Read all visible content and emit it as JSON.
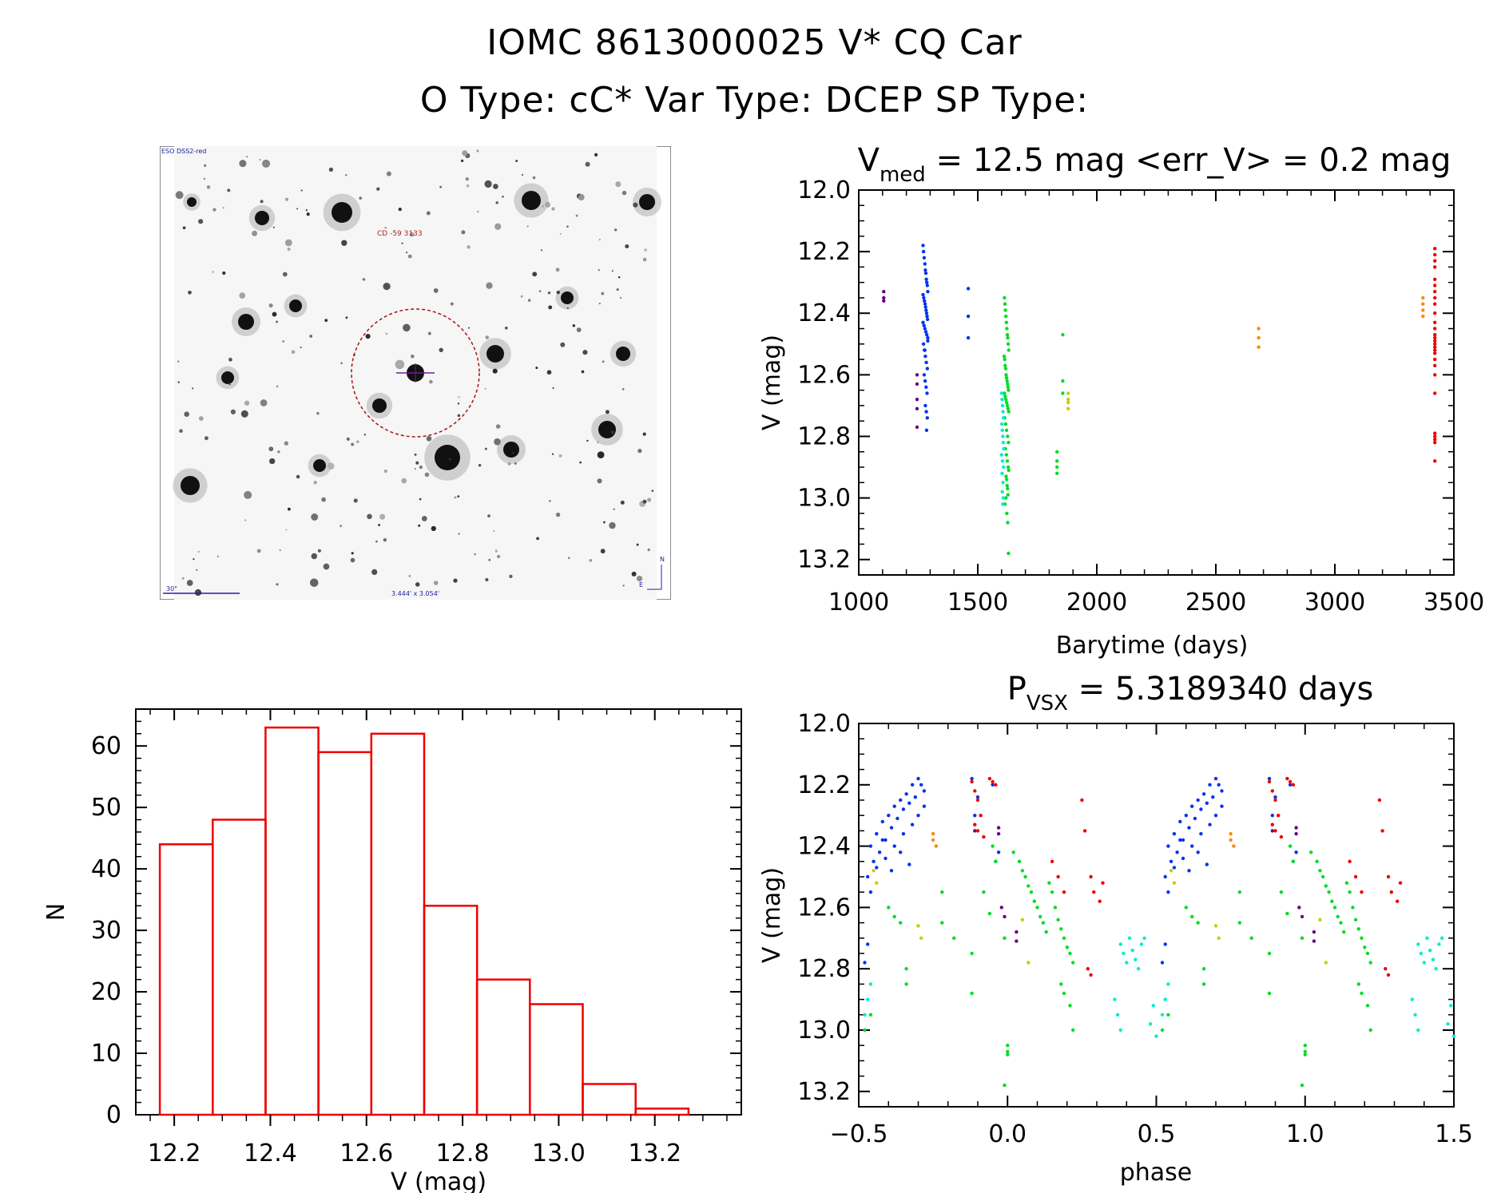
{
  "header": {
    "line1": "IOMC 8613000025    V* CQ Car",
    "line2": "O Type: cC*  Var Type: DCEP  SP Type:"
  },
  "finder": {
    "survey_label": "ESO DSS2-red",
    "object_label": "CD -59 3133",
    "scale_label": "30\"",
    "fov_label": "3.444' x 3.054'",
    "east_label": "E",
    "north_label": "N"
  },
  "chart_data": [
    {
      "type": "scatter",
      "id": "lightcurve",
      "title_prefix": "V",
      "title_sub": "med",
      "title_rest": " = 12.5 mag <err_V> = 0.2 mag",
      "xlabel": "Barytime (days)",
      "ylabel": "V (mag)",
      "xlim": [
        1000,
        3500
      ],
      "ylim": [
        13.25,
        12.0
      ],
      "xticks": [
        "1000",
        "1500",
        "2000",
        "2500",
        "3000",
        "3500"
      ],
      "yticks": [
        "12.0",
        "12.2",
        "12.4",
        "12.6",
        "12.8",
        "13.0",
        "13.2"
      ],
      "series": [
        {
          "name": "purple",
          "color": "#6a0080",
          "x": [
            1105,
            1105,
            1105,
            1245,
            1245,
            1245,
            1245,
            1245
          ],
          "y": [
            12.33,
            12.35,
            12.36,
            12.6,
            12.63,
            12.68,
            12.71,
            12.77
          ]
        },
        {
          "name": "blue",
          "color": "#0033ee",
          "x": [
            1270,
            1272,
            1275,
            1278,
            1280,
            1282,
            1284,
            1286,
            1288,
            1290,
            1270,
            1273,
            1276,
            1279,
            1281,
            1283,
            1285,
            1287,
            1289,
            1270,
            1274,
            1278,
            1282,
            1286,
            1290,
            1272,
            1276,
            1280,
            1284,
            1288,
            1275,
            1279,
            1283,
            1287,
            1280,
            1284,
            1288,
            1285,
            1278,
            1290,
            1460,
            1460,
            1460
          ],
          "y": [
            12.18,
            12.2,
            12.22,
            12.24,
            12.26,
            12.27,
            12.29,
            12.3,
            12.31,
            12.33,
            12.34,
            12.35,
            12.36,
            12.37,
            12.38,
            12.39,
            12.4,
            12.41,
            12.42,
            12.43,
            12.44,
            12.45,
            12.46,
            12.47,
            12.48,
            12.5,
            12.52,
            12.54,
            12.56,
            12.58,
            12.6,
            12.62,
            12.64,
            12.66,
            12.7,
            12.72,
            12.74,
            12.78,
            12.52,
            12.49,
            12.32,
            12.41,
            12.48
          ]
        },
        {
          "name": "green",
          "color": "#00dd22",
          "x": [
            1612,
            1614,
            1616,
            1618,
            1620,
            1622,
            1624,
            1626,
            1628,
            1630,
            1611,
            1613,
            1615,
            1617,
            1619,
            1621,
            1623,
            1625,
            1627,
            1629,
            1612,
            1615,
            1618,
            1621,
            1624,
            1627,
            1630,
            1613,
            1617,
            1621,
            1625,
            1629,
            1616,
            1620,
            1624,
            1628,
            1619,
            1623,
            1627,
            1614,
            1622,
            1626,
            1618,
            1630,
            1621,
            1625,
            1629,
            1833,
            1833,
            1833,
            1833,
            1857,
            1857,
            1857
          ],
          "y": [
            12.35,
            12.37,
            12.39,
            12.41,
            12.43,
            12.45,
            12.47,
            12.48,
            12.5,
            12.52,
            12.54,
            12.55,
            12.57,
            12.58,
            12.6,
            12.61,
            12.62,
            12.63,
            12.64,
            12.65,
            12.66,
            12.67,
            12.68,
            12.69,
            12.7,
            12.71,
            12.72,
            12.74,
            12.76,
            12.78,
            12.8,
            12.82,
            12.84,
            12.86,
            12.88,
            12.9,
            12.93,
            12.96,
            12.99,
            13.02,
            13.05,
            13.08,
            13.0,
            12.91,
            12.94,
            12.97,
            13.18,
            12.85,
            12.88,
            12.9,
            12.92,
            12.47,
            12.62,
            12.66
          ]
        },
        {
          "name": "cyan",
          "color": "#00eecc",
          "x": [
            1600,
            1602,
            1604,
            1606,
            1608,
            1601,
            1603,
            1605,
            1607,
            1609,
            1600,
            1604,
            1608,
            1602,
            1606,
            1603,
            1607,
            1605
          ],
          "y": [
            12.66,
            12.68,
            12.7,
            12.72,
            12.74,
            12.76,
            12.78,
            12.8,
            12.82,
            12.84,
            12.86,
            12.88,
            12.9,
            12.92,
            12.95,
            12.98,
            13.0,
            13.02
          ]
        },
        {
          "name": "yellow",
          "color": "#cccc00",
          "x": [
            1880,
            1880,
            1880,
            1880
          ],
          "y": [
            12.66,
            12.68,
            12.69,
            12.71
          ]
        },
        {
          "name": "orange",
          "color": "#ff8800",
          "x": [
            2680,
            2680,
            2680,
            3370,
            3370,
            3370,
            3370
          ],
          "y": [
            12.45,
            12.48,
            12.51,
            12.35,
            12.37,
            12.39,
            12.41
          ]
        },
        {
          "name": "red",
          "color": "#ee0000",
          "x": [
            3420,
            3420,
            3420,
            3420,
            3420,
            3420,
            3420,
            3420,
            3420,
            3420,
            3420,
            3420,
            3420,
            3420,
            3420,
            3420,
            3420,
            3420,
            3420,
            3420,
            3420,
            3420,
            3420,
            3420,
            3420,
            3420,
            3420,
            3420
          ],
          "y": [
            12.19,
            12.21,
            12.23,
            12.25,
            12.29,
            12.31,
            12.33,
            12.35,
            12.37,
            12.4,
            12.43,
            12.45,
            12.47,
            12.48,
            12.49,
            12.5,
            12.51,
            12.52,
            12.53,
            12.55,
            12.57,
            12.6,
            12.66,
            12.79,
            12.8,
            12.81,
            12.82,
            12.88
          ]
        }
      ]
    },
    {
      "type": "bar",
      "id": "histogram",
      "xlabel": "V (mag)",
      "ylabel": "N",
      "xlim": [
        12.12,
        13.38
      ],
      "ylim": [
        0,
        66
      ],
      "xticks": [
        "12.2",
        "12.4",
        "12.6",
        "12.8",
        "13.0",
        "13.2"
      ],
      "yticks": [
        "0",
        "10",
        "20",
        "30",
        "40",
        "50",
        "60"
      ],
      "bin_edges": [
        12.17,
        12.28,
        12.39,
        12.5,
        12.61,
        12.72,
        12.83,
        12.94,
        13.05,
        13.16,
        13.27
      ],
      "values": [
        44,
        48,
        63,
        59,
        62,
        34,
        22,
        18,
        5,
        1
      ],
      "color": "#ee0000"
    },
    {
      "type": "scatter",
      "id": "phased",
      "title_prefix": "P",
      "title_sub": "VSX",
      "title_rest": " = 5.3189340 days",
      "xlabel": "phase",
      "ylabel": "V (mag)",
      "xlim": [
        -0.5,
        1.5
      ],
      "ylim": [
        13.25,
        12.0
      ],
      "xticks": [
        "−0.5",
        "0.0",
        "0.5",
        "1.0",
        "1.5"
      ],
      "yticks": [
        "12.0",
        "12.2",
        "12.4",
        "12.6",
        "12.8",
        "13.0",
        "13.2"
      ],
      "series": [
        {
          "name": "blue",
          "color": "#0033ee",
          "x": [
            -0.46,
            -0.44,
            -0.42,
            -0.4,
            -0.38,
            -0.36,
            -0.34,
            -0.32,
            -0.3,
            -0.28,
            -0.45,
            -0.43,
            -0.41,
            -0.39,
            -0.37,
            -0.35,
            -0.33,
            -0.31,
            -0.29,
            -0.47,
            -0.44,
            -0.41,
            -0.38,
            -0.35,
            -0.32,
            -0.3,
            -0.28,
            -0.42,
            -0.36,
            -0.33,
            -0.39,
            -0.46,
            -0.12,
            -0.1,
            -0.11,
            -0.05,
            -0.04,
            -0.03,
            -0.48,
            -0.47
          ],
          "y": [
            12.4,
            12.36,
            12.32,
            12.3,
            12.27,
            12.25,
            12.23,
            12.2,
            12.18,
            12.22,
            12.45,
            12.42,
            12.38,
            12.34,
            12.31,
            12.28,
            12.26,
            12.24,
            12.2,
            12.5,
            12.47,
            12.44,
            12.4,
            12.36,
            12.33,
            12.3,
            12.27,
            12.38,
            12.42,
            12.46,
            12.48,
            12.55,
            12.18,
            12.24,
            12.3,
            12.2,
            12.45,
            12.42,
            12.78,
            12.72
          ]
        },
        {
          "name": "green",
          "color": "#00dd22",
          "x": [
            -0.48,
            -0.46,
            -0.4,
            -0.38,
            -0.36,
            -0.34,
            -0.34,
            -0.22,
            -0.22,
            -0.18,
            -0.12,
            -0.12,
            -0.08,
            -0.06,
            -0.05,
            -0.04,
            -0.01,
            0.0,
            0.02,
            0.04,
            0.05,
            0.06,
            0.07,
            0.08,
            0.09,
            0.1,
            0.11,
            0.12,
            0.13,
            0.14,
            0.15,
            0.16,
            0.17,
            0.18,
            0.19,
            0.2,
            0.21,
            0.22,
            0.18,
            0.19,
            0.21,
            0.22,
            0.0,
            0.0,
            -0.01
          ],
          "y": [
            13.0,
            12.95,
            12.6,
            12.63,
            12.65,
            12.8,
            12.85,
            12.55,
            12.65,
            12.7,
            12.75,
            12.88,
            12.55,
            12.62,
            12.4,
            12.45,
            13.18,
            13.05,
            12.42,
            12.45,
            12.48,
            12.5,
            12.53,
            12.55,
            12.58,
            12.6,
            12.63,
            12.65,
            12.68,
            12.52,
            12.55,
            12.6,
            12.64,
            12.67,
            12.7,
            12.73,
            12.75,
            12.78,
            12.85,
            12.88,
            12.92,
            13.0,
            13.07,
            13.08,
            12.7
          ]
        },
        {
          "name": "cyan",
          "color": "#00eecc",
          "x": [
            -0.48,
            -0.47,
            -0.46,
            0.38,
            0.39,
            0.4,
            0.41,
            0.42,
            0.43,
            0.44,
            0.45,
            0.46,
            0.36,
            0.37,
            0.38,
            0.48,
            0.5,
            0.49
          ],
          "y": [
            12.95,
            12.9,
            12.85,
            12.72,
            12.75,
            12.78,
            12.7,
            12.74,
            12.77,
            12.8,
            12.72,
            12.7,
            12.9,
            12.95,
            13.0,
            12.98,
            13.02,
            12.92
          ]
        },
        {
          "name": "yellow",
          "color": "#cccc00",
          "x": [
            -0.45,
            -0.44,
            -0.3,
            -0.29,
            0.05,
            0.07
          ],
          "y": [
            12.48,
            12.52,
            12.66,
            12.7,
            12.64,
            12.78
          ]
        },
        {
          "name": "orange",
          "color": "#ff8800",
          "x": [
            -0.25,
            -0.25,
            -0.24
          ],
          "y": [
            12.36,
            12.38,
            12.4
          ]
        },
        {
          "name": "purple",
          "color": "#6a0080",
          "x": [
            -0.11,
            -0.03,
            -0.03,
            -0.02,
            -0.01,
            0.03,
            0.03
          ],
          "y": [
            12.35,
            12.34,
            12.36,
            12.6,
            12.63,
            12.68,
            12.71
          ]
        },
        {
          "name": "red",
          "color": "#ee0000",
          "x": [
            -0.12,
            -0.11,
            -0.1,
            -0.09,
            -0.11,
            -0.1,
            -0.08,
            -0.06,
            -0.05,
            -0.04,
            0.15,
            0.17,
            0.19,
            0.25,
            0.26,
            0.28,
            0.29,
            0.31,
            0.32,
            0.27,
            0.28
          ],
          "y": [
            12.19,
            12.22,
            12.25,
            12.3,
            12.33,
            12.35,
            12.37,
            12.18,
            12.19,
            12.2,
            12.45,
            12.5,
            12.55,
            12.25,
            12.35,
            12.5,
            12.55,
            12.58,
            12.52,
            12.8,
            12.82
          ]
        }
      ]
    }
  ]
}
